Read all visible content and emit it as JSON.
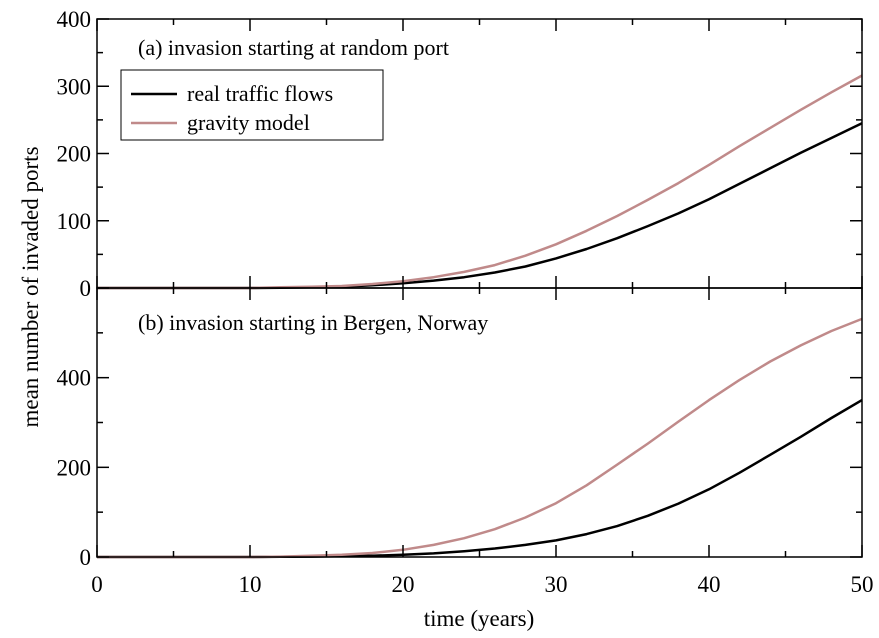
{
  "chart_data": {
    "type": "line",
    "xlabel": "time (years)",
    "ylabel": "mean number of invaded ports",
    "xlim": [
      0,
      50
    ],
    "x_ticks": [
      "0",
      "10",
      "20",
      "30",
      "40",
      "50"
    ],
    "grid": false,
    "legend": {
      "placement": "top-left",
      "entries": [
        "real traffic flows",
        "gravity model"
      ]
    },
    "colors": {
      "real": "#000000",
      "gravity": "#c08a8a",
      "axis": "#000000"
    },
    "panels": [
      {
        "id": "a",
        "title": "(a)  invasion starting at random port",
        "ylim": [
          0,
          400
        ],
        "y_ticks": [
          "0",
          "100",
          "200",
          "300",
          "400"
        ],
        "x": [
          0,
          10,
          12,
          14,
          16,
          18,
          20,
          22,
          24,
          26,
          28,
          30,
          32,
          34,
          36,
          38,
          40,
          42,
          44,
          46,
          48,
          50
        ],
        "series": [
          {
            "name": "real traffic flows",
            "values": [
              0,
              0,
              0.5,
              1,
              2,
              4,
              7,
              11,
              16,
              23,
              32,
              44,
              58,
              74,
              92,
              111,
              132,
              155,
              178,
              201,
              223,
              245
            ]
          },
          {
            "name": "gravity model",
            "values": [
              0,
              0,
              1,
              2,
              3,
              6,
              10,
              16,
              24,
              34,
              48,
              65,
              85,
              107,
              131,
              156,
              183,
              211,
              238,
              265,
              291,
              316
            ]
          }
        ]
      },
      {
        "id": "b",
        "title": "(b)  invasion starting in Bergen, Norway",
        "ylim": [
          0,
          600
        ],
        "y_ticks": [
          "0",
          "200",
          "400"
        ],
        "x": [
          0,
          10,
          12,
          14,
          16,
          18,
          20,
          22,
          24,
          26,
          28,
          30,
          32,
          34,
          36,
          38,
          40,
          42,
          44,
          46,
          48,
          50
        ],
        "series": [
          {
            "name": "real traffic flows",
            "values": [
              0,
              0,
              0.5,
              1,
              2,
              3,
              5,
              8,
              13,
              19,
              27,
              37,
              51,
              69,
              92,
              119,
              151,
              188,
              228,
              268,
              310,
              350
            ]
          },
          {
            "name": "gravity model",
            "values": [
              0,
              0,
              1,
              3,
              5,
              9,
              16,
              27,
              42,
              62,
              88,
              120,
              160,
              206,
              253,
              302,
              350,
              395,
              436,
              472,
              504,
              531
            ]
          }
        ]
      }
    ]
  }
}
